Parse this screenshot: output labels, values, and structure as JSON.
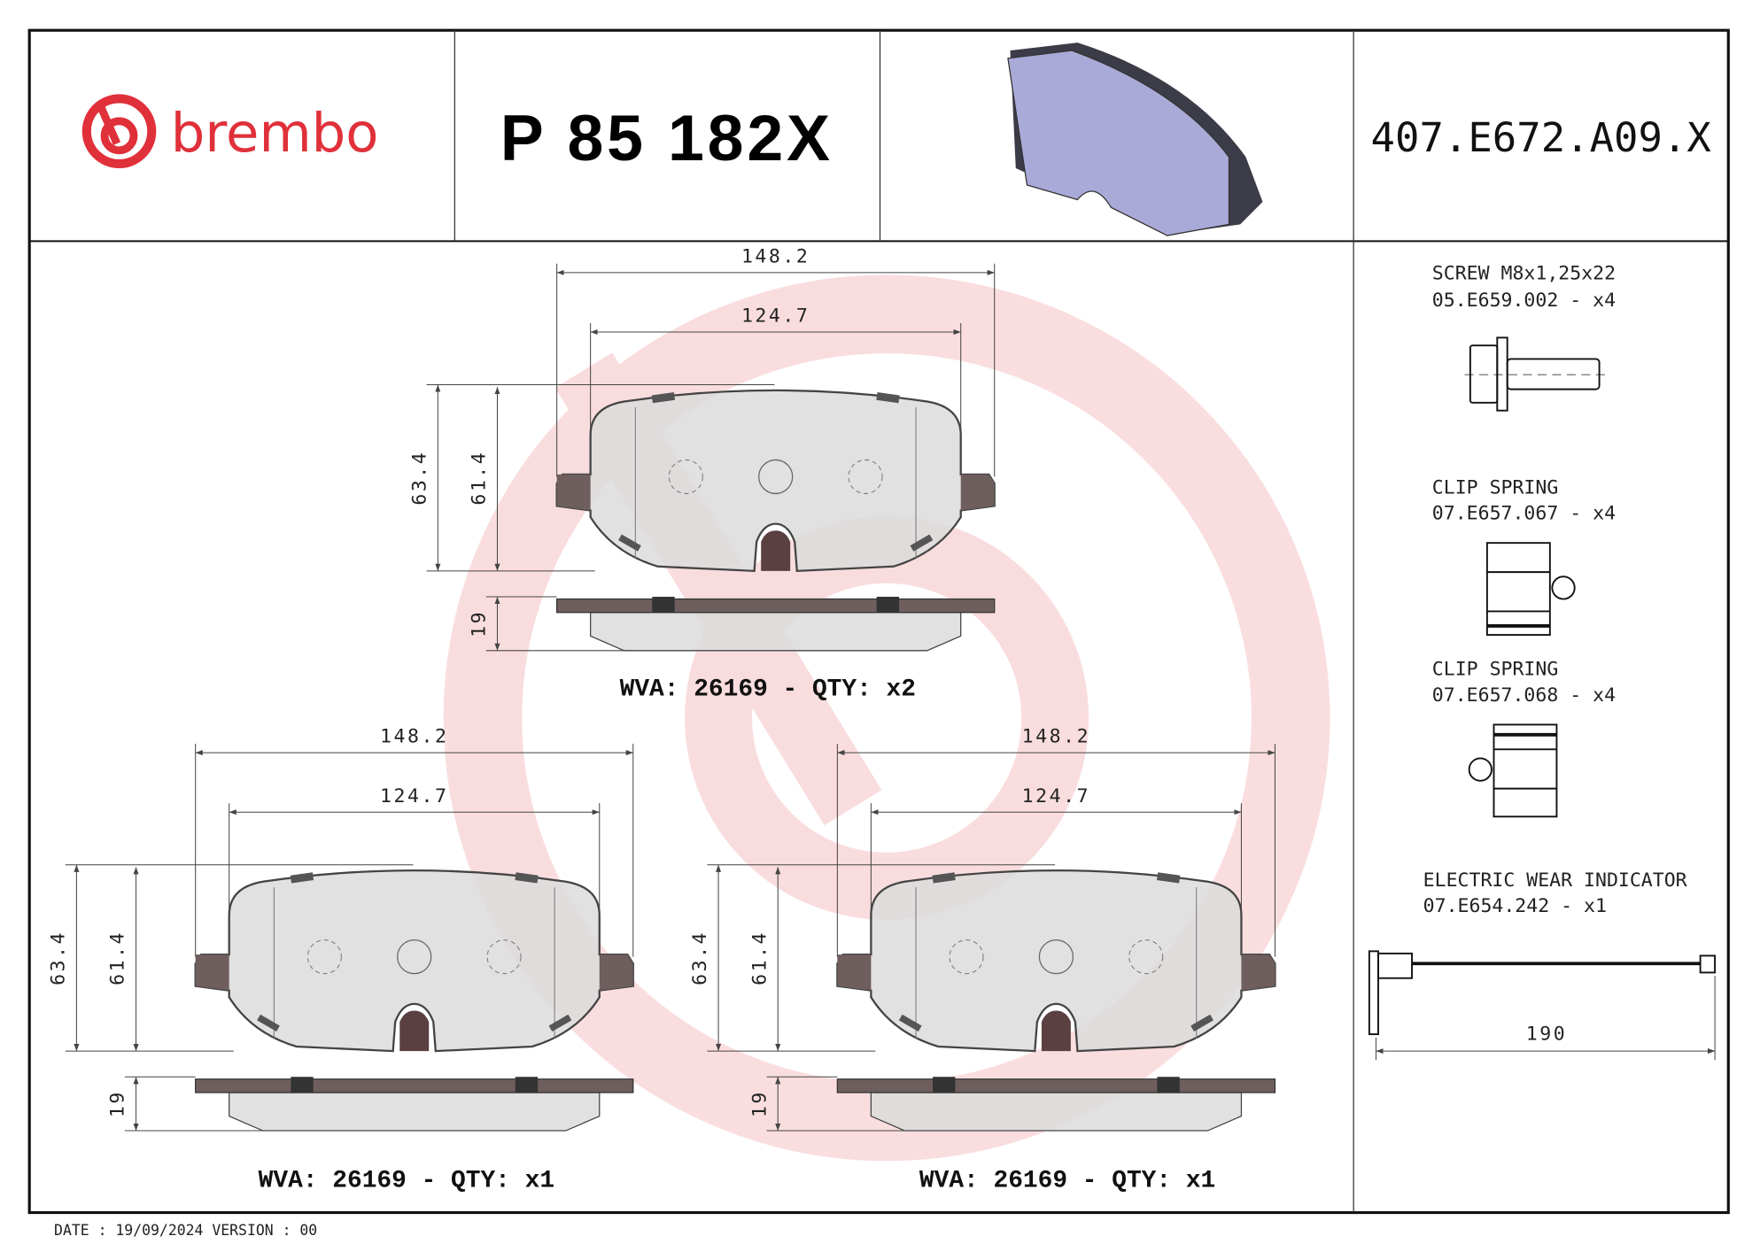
{
  "header": {
    "brand": "brembo",
    "part_number": "P 85 182X",
    "reference": "407.E672.A09.X",
    "brand_color": "#e0303a"
  },
  "pads": [
    {
      "width_outer": "148.2",
      "width_inner": "124.7",
      "height_outer": "63.4",
      "height_inner": "61.4",
      "thickness": "19",
      "label": "WVA: 26169 - QTY: x2"
    },
    {
      "width_outer": "148.2",
      "width_inner": "124.7",
      "height_outer": "63.4",
      "height_inner": "61.4",
      "thickness": "19",
      "label": "WVA: 26169 - QTY: x1"
    },
    {
      "width_outer": "148.2",
      "width_inner": "124.7",
      "height_outer": "63.4",
      "height_inner": "61.4",
      "thickness": "19",
      "label": "WVA: 26169 - QTY: x1"
    }
  ],
  "accessories": [
    {
      "name": "SCREW M8x1,25x22",
      "code": "05.E659.002 - x4"
    },
    {
      "name": "CLIP SPRING",
      "code": "07.E657.067 - x4"
    },
    {
      "name": "CLIP SPRING",
      "code": "07.E657.068 - x4"
    },
    {
      "name": "ELECTRIC WEAR INDICATOR",
      "code": "07.E654.242 - x1",
      "length": "190"
    }
  ],
  "footer": {
    "date_version": "DATE : 19/09/2024 VERSION : 00"
  }
}
